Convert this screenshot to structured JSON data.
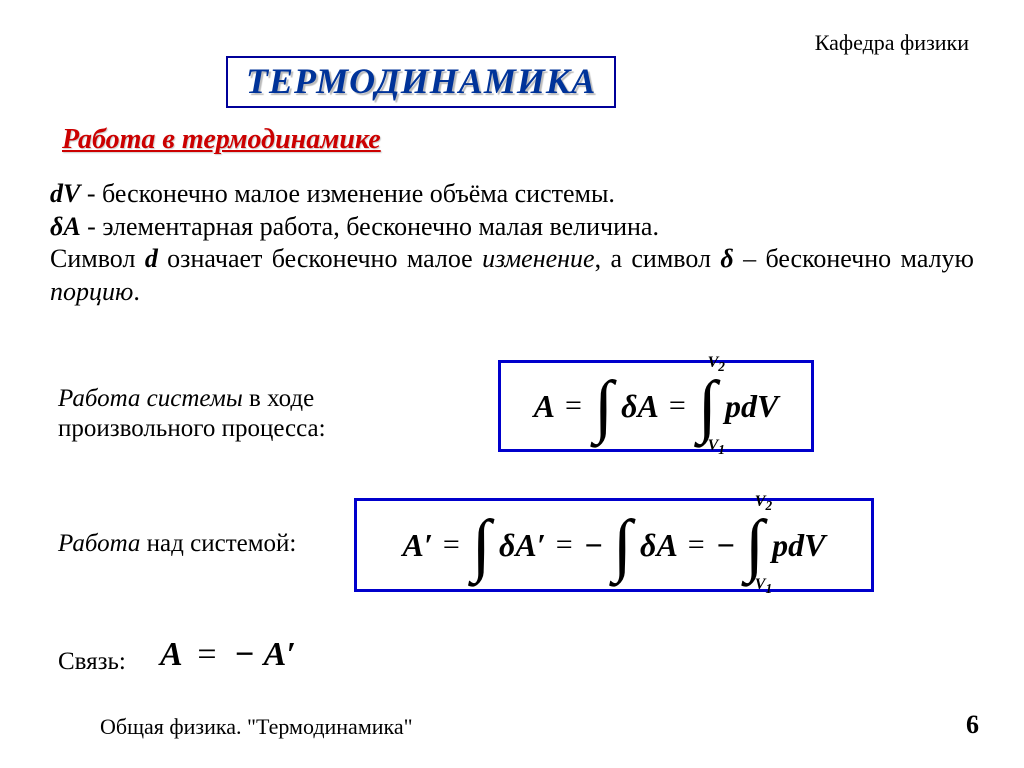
{
  "header": {
    "department": "Кафедра физики"
  },
  "title": "ТЕРМОДИНАМИКА",
  "subtitle": "Работа в термодинамике",
  "definitions": {
    "dV_sym": "dV",
    "dV_text": " - бесконечно малое изменение объёма системы.",
    "dA_sym": "δA",
    "dA_text": " - элементарная работа, бесконечно малая величина.",
    "line3_a": "Символ ",
    "line3_d": "d",
    "line3_b": " означает бесконечно малое ",
    "line3_change": "изменение",
    "line3_c": ", а символ ",
    "line3_delta": "δ",
    "line3_d2": "  – бесконечно малую ",
    "line3_portion": "порцию",
    "line3_e": "."
  },
  "rows": {
    "r1_a": "Работа системы",
    "r1_b": " в ходе",
    "r1_c": "произвольного процесса:",
    "r2_a": "Работа",
    "r2_b": " над системой:",
    "r3": "Связь:"
  },
  "formula1": {
    "A": "A",
    "eq": "=",
    "dA": "δA",
    "pdV": "pdV",
    "upper": "V",
    "upper_sub": "2",
    "lower": "V",
    "lower_sub": "1"
  },
  "formula2": {
    "Ap": "A′",
    "eq": "=",
    "dAp": "δA′",
    "dA": "δA",
    "pdV": "pdV",
    "minus": "−",
    "upper": "V",
    "upper_sub": "2",
    "lower": "V",
    "lower_sub": "1"
  },
  "relation": {
    "A": "A",
    "eq": "=",
    "minus": "−",
    "Ap": "A′"
  },
  "footer": {
    "course": "Общая физика. \"Термодинамика\"",
    "page": "6"
  },
  "colors": {
    "title_color": "#003399",
    "subtitle_color": "#cc0000",
    "box_border": "#0000cc"
  }
}
